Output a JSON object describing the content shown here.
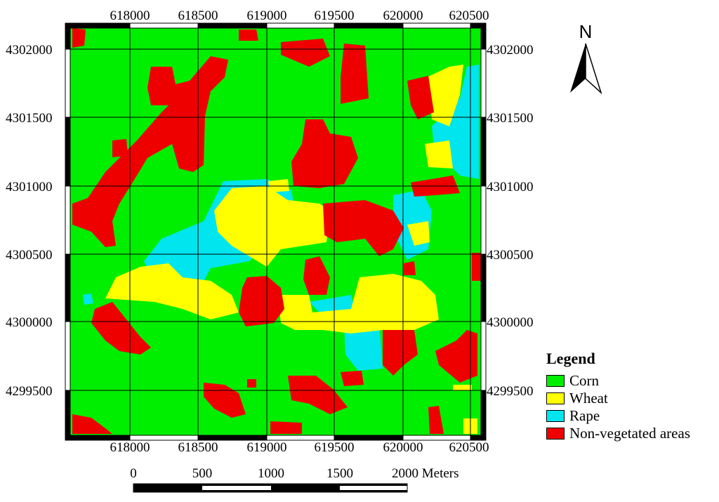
{
  "map": {
    "top_ticks": [
      "618000",
      "618500",
      "619000",
      "619500",
      "620000",
      "620500"
    ],
    "bottom_ticks": [
      "618000",
      "618500",
      "619000",
      "619500",
      "620000",
      "620500"
    ],
    "left_ticks": [
      "4302000",
      "4301500",
      "4301000",
      "4300500",
      "4300000",
      "4299500"
    ],
    "right_ticks": [
      "4302000",
      "4301500",
      "4301000",
      "4300500",
      "4300000",
      "4299500"
    ]
  },
  "north_arrow": {
    "letter": "N",
    "icon": "north-arrow-icon"
  },
  "legend": {
    "title": "Legend",
    "items": [
      {
        "label": "Corn",
        "color": "#00ee00"
      },
      {
        "label": "Wheat",
        "color": "#ffff00"
      },
      {
        "label": "Rape",
        "color": "#00e5ee"
      },
      {
        "label": "Non-vegetated areas",
        "color": "#ee0000"
      }
    ]
  },
  "scale_bar": {
    "labels": [
      "0",
      "500",
      "1000",
      "1500",
      "2000 Meters"
    ]
  }
}
